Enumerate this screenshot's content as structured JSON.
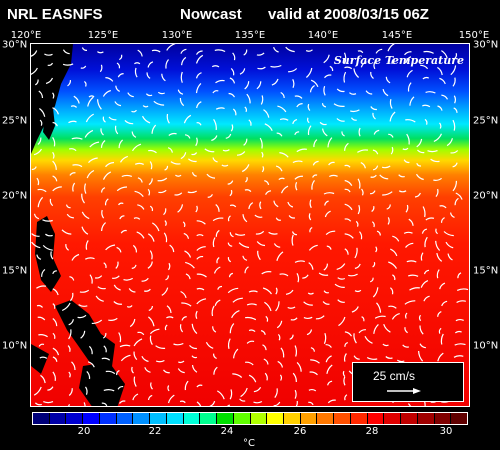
{
  "header": {
    "source": "NRL EASNFS",
    "product": "Nowcast",
    "valid": "valid at 2008/03/15 06Z"
  },
  "map_label": "Surface Temperature",
  "lon_labels": [
    "120°E",
    "125°E",
    "130°E",
    "135°E",
    "140°E",
    "145°E",
    "150°E"
  ],
  "lat_labels": [
    "30°N",
    "25°N",
    "20°N",
    "15°N",
    "10°N"
  ],
  "scale": {
    "label": "25 cm/s"
  },
  "colorbar": {
    "unit": "°C",
    "ticks": [
      "20",
      "22",
      "24",
      "26",
      "28",
      "30"
    ],
    "colors": [
      "#00007a",
      "#0000a8",
      "#0000d0",
      "#0000ff",
      "#0030ff",
      "#0060ff",
      "#0090ff",
      "#00bfff",
      "#00e0ff",
      "#00ffd8",
      "#00ff90",
      "#00e000",
      "#60ff00",
      "#b0ff00",
      "#ffff00",
      "#ffd000",
      "#ffa000",
      "#ff7800",
      "#ff5000",
      "#ff2800",
      "#ff0000",
      "#e00000",
      "#c00000",
      "#a00000",
      "#800000",
      "#600000"
    ]
  },
  "colors": {
    "background": "#000000",
    "land": "#000000",
    "vectors": "#ffffff"
  }
}
